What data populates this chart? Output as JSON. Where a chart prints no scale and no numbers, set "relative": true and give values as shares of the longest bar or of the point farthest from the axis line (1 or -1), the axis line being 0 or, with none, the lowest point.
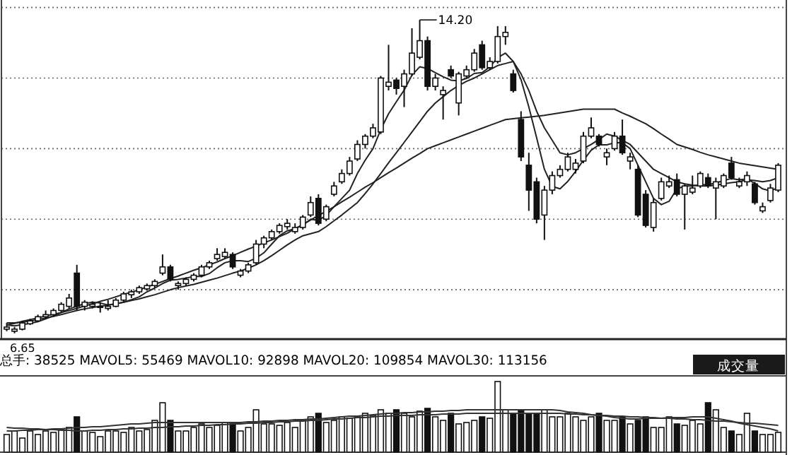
{
  "chart_data": [
    {
      "type": "candlestick",
      "grid": "y",
      "ylim": [
        6.51,
        14.68
      ],
      "yticks": [
        {
          "value": 14.5,
          "label": null
        },
        {
          "value": 12.8,
          "label": null
        },
        {
          "value": 11.1,
          "label": null
        },
        {
          "value": 9.4,
          "label": null
        },
        {
          "value": 7.7,
          "label": null
        }
      ],
      "categories": [
        null,
        null,
        null,
        null,
        null,
        null,
        null,
        null,
        null,
        null,
        null,
        null,
        null,
        null,
        null,
        null,
        null,
        null,
        null,
        null,
        null,
        null,
        null,
        null,
        null,
        null,
        null,
        null,
        null,
        null,
        null,
        null,
        null,
        null,
        null,
        null,
        null,
        null,
        null,
        null,
        null,
        null,
        null,
        null,
        null,
        null,
        null,
        null,
        null,
        null,
        null,
        null,
        null,
        null,
        null,
        null,
        null,
        null,
        null,
        null,
        null,
        null,
        null,
        null,
        null,
        null,
        null,
        null,
        null,
        null,
        null,
        null,
        null,
        null,
        null,
        null,
        null,
        null,
        null,
        null,
        null,
        null,
        null,
        null,
        null,
        null,
        null,
        null,
        null,
        null,
        null,
        null,
        null,
        null,
        null,
        null,
        null,
        null,
        null,
        null
      ],
      "ohlc": [
        [
          6.75,
          6.9,
          6.7,
          6.8
        ],
        [
          6.7,
          6.8,
          6.65,
          6.75
        ],
        [
          6.75,
          6.95,
          6.72,
          6.9
        ],
        [
          6.88,
          7.0,
          6.85,
          6.95
        ],
        [
          6.95,
          7.1,
          6.92,
          7.05
        ],
        [
          7.05,
          7.2,
          7.0,
          7.1
        ],
        [
          7.1,
          7.25,
          7.05,
          7.2
        ],
        [
          7.2,
          7.4,
          7.15,
          7.35
        ],
        [
          7.3,
          7.6,
          7.25,
          7.5
        ],
        [
          8.1,
          8.3,
          7.2,
          7.3
        ],
        [
          7.3,
          7.45,
          7.2,
          7.4
        ],
        [
          7.3,
          7.42,
          7.25,
          7.35
        ],
        [
          7.28,
          7.4,
          7.15,
          7.3
        ],
        [
          7.25,
          7.45,
          7.2,
          7.3
        ],
        [
          7.3,
          7.5,
          7.28,
          7.45
        ],
        [
          7.45,
          7.65,
          7.4,
          7.6
        ],
        [
          7.58,
          7.7,
          7.5,
          7.65
        ],
        [
          7.65,
          7.8,
          7.6,
          7.75
        ],
        [
          7.72,
          7.85,
          7.68,
          7.8
        ],
        [
          7.8,
          7.95,
          7.75,
          7.9
        ],
        [
          8.1,
          8.55,
          8.05,
          8.25
        ],
        [
          8.25,
          8.3,
          7.9,
          7.95
        ],
        [
          7.8,
          7.9,
          7.7,
          7.85
        ],
        [
          7.85,
          8.0,
          7.8,
          7.95
        ],
        [
          7.95,
          8.1,
          7.9,
          8.05
        ],
        [
          8.05,
          8.3,
          8.0,
          8.25
        ],
        [
          8.25,
          8.4,
          8.2,
          8.35
        ],
        [
          8.45,
          8.7,
          8.4,
          8.55
        ],
        [
          8.5,
          8.7,
          8.45,
          8.6
        ],
        [
          8.55,
          8.6,
          8.2,
          8.25
        ],
        [
          8.05,
          8.2,
          8.0,
          8.15
        ],
        [
          8.15,
          8.35,
          8.1,
          8.3
        ],
        [
          8.35,
          8.9,
          8.3,
          8.8
        ],
        [
          8.8,
          9.0,
          8.7,
          8.95
        ],
        [
          8.95,
          9.15,
          8.9,
          9.1
        ],
        [
          9.1,
          9.3,
          9.05,
          9.25
        ],
        [
          9.22,
          9.4,
          9.15,
          9.3
        ],
        [
          9.1,
          9.3,
          9.05,
          9.2
        ],
        [
          9.2,
          9.5,
          9.15,
          9.45
        ],
        [
          9.5,
          9.95,
          9.45,
          9.8
        ],
        [
          9.9,
          10.0,
          9.25,
          9.3
        ],
        [
          9.4,
          9.75,
          9.35,
          9.7
        ],
        [
          10.0,
          10.3,
          9.95,
          10.2
        ],
        [
          10.3,
          10.6,
          10.25,
          10.5
        ],
        [
          10.5,
          10.9,
          10.45,
          10.8
        ],
        [
          10.85,
          11.3,
          10.8,
          11.2
        ],
        [
          11.2,
          11.45,
          11.1,
          11.4
        ],
        [
          11.4,
          11.7,
          11.35,
          11.6
        ],
        [
          11.5,
          12.85,
          11.45,
          12.8
        ],
        [
          12.6,
          13.6,
          12.5,
          12.7
        ],
        [
          12.75,
          12.8,
          12.4,
          12.55
        ],
        [
          12.6,
          13.0,
          12.1,
          12.9
        ],
        [
          12.9,
          14.0,
          12.85,
          13.4
        ],
        [
          13.3,
          14.2,
          13.25,
          13.7
        ],
        [
          13.7,
          13.8,
          12.5,
          12.6
        ],
        [
          12.6,
          12.9,
          12.5,
          12.8
        ],
        [
          12.4,
          12.6,
          11.8,
          12.5
        ],
        [
          13.0,
          13.1,
          12.8,
          12.85
        ],
        [
          12.2,
          12.95,
          11.9,
          12.9
        ],
        [
          12.85,
          13.1,
          12.8,
          13.0
        ],
        [
          13.0,
          13.5,
          12.95,
          13.4
        ],
        [
          13.6,
          13.7,
          13.0,
          13.05
        ],
        [
          13.05,
          13.3,
          13.0,
          13.2
        ],
        [
          13.2,
          14.05,
          13.15,
          13.8
        ],
        [
          13.8,
          14.05,
          13.6,
          13.9
        ],
        [
          12.9,
          13.0,
          12.45,
          12.5
        ],
        [
          11.8,
          12.0,
          10.8,
          10.9
        ],
        [
          10.7,
          11.0,
          9.6,
          10.1
        ],
        [
          10.3,
          10.4,
          9.3,
          9.4
        ],
        [
          9.5,
          10.2,
          8.9,
          10.1
        ],
        [
          10.1,
          10.55,
          10.0,
          10.45
        ],
        [
          10.45,
          10.7,
          10.4,
          10.6
        ],
        [
          10.6,
          11.0,
          10.55,
          10.9
        ],
        [
          10.6,
          10.85,
          10.5,
          10.75
        ],
        [
          10.8,
          11.5,
          10.75,
          11.4
        ],
        [
          11.4,
          11.85,
          11.35,
          11.6
        ],
        [
          11.4,
          11.45,
          11.15,
          11.2
        ],
        [
          10.9,
          11.1,
          10.7,
          11.0
        ],
        [
          11.1,
          11.5,
          11.05,
          11.4
        ],
        [
          11.4,
          11.8,
          10.95,
          11.0
        ],
        [
          10.8,
          11.0,
          10.6,
          10.9
        ],
        [
          10.6,
          10.7,
          9.45,
          9.5
        ],
        [
          10.0,
          10.1,
          9.2,
          9.25
        ],
        [
          9.2,
          9.9,
          9.1,
          9.8
        ],
        [
          9.9,
          10.4,
          9.85,
          10.3
        ],
        [
          10.2,
          10.45,
          10.15,
          10.3
        ],
        [
          10.35,
          10.5,
          9.95,
          10.0
        ],
        [
          10.0,
          10.25,
          9.15,
          10.2
        ],
        [
          10.05,
          10.45,
          10.0,
          10.15
        ],
        [
          10.2,
          10.55,
          10.15,
          10.5
        ],
        [
          10.4,
          10.5,
          10.15,
          10.2
        ],
        [
          10.15,
          10.4,
          9.4,
          10.3
        ],
        [
          10.2,
          10.5,
          10.15,
          10.45
        ],
        [
          10.75,
          10.9,
          10.35,
          10.4
        ],
        [
          10.2,
          10.4,
          10.15,
          10.3
        ],
        [
          10.3,
          10.55,
          10.2,
          10.45
        ],
        [
          10.25,
          10.3,
          9.75,
          9.8
        ],
        [
          9.6,
          9.8,
          9.55,
          9.7
        ],
        [
          9.85,
          10.25,
          9.8,
          10.15
        ],
        [
          10.1,
          10.75,
          10.05,
          10.7
        ]
      ],
      "series": [
        {
          "type": "line",
          "color": "#222222",
          "values": [
            6.85,
            6.83,
            6.86,
            6.89,
            6.93,
            7.0,
            7.07,
            7.15,
            7.24,
            7.3,
            7.37,
            7.4,
            7.38,
            7.33,
            7.36,
            7.4,
            7.46,
            7.53,
            7.65,
            7.74,
            7.85,
            7.93,
            7.95,
            7.98,
            8.02,
            8.02,
            8.09,
            8.23,
            8.35,
            8.4,
            8.4,
            8.38,
            8.46,
            8.59,
            8.8,
            9.0,
            9.12,
            9.17,
            9.26,
            9.4,
            9.37,
            9.49,
            9.7,
            9.9,
            10.1,
            10.5,
            10.82,
            11.1,
            11.56,
            11.94,
            12.23,
            12.51,
            12.87,
            13.07,
            13.03,
            12.93,
            12.83,
            12.75,
            12.73,
            12.79,
            12.91,
            12.93,
            13.07,
            13.29,
            13.4,
            13.2,
            12.76,
            12.1,
            11.36,
            10.6,
            10.19,
            10.13,
            10.31,
            10.55,
            10.82,
            11.06,
            11.19,
            11.19,
            11.24,
            11.24,
            11.1,
            10.7,
            10.3,
            9.9,
            9.75,
            9.83,
            10.13,
            10.2,
            10.2,
            10.23,
            10.23,
            10.27,
            10.33,
            10.38,
            10.35,
            10.37,
            10.26,
            10.13,
            10.08,
            10.16
          ]
        },
        {
          "type": "line",
          "color": "#222222",
          "values": [
            6.9,
            6.9,
            6.92,
            6.95,
            6.98,
            7.02,
            7.06,
            7.1,
            7.15,
            7.2,
            7.24,
            7.27,
            7.3,
            7.33,
            7.36,
            7.4,
            7.44,
            7.48,
            7.53,
            7.58,
            7.64,
            7.7,
            7.75,
            7.79,
            7.83,
            7.88,
            7.93,
            7.98,
            8.04,
            8.1,
            8.15,
            8.22,
            8.3,
            8.4,
            8.52,
            8.65,
            8.78,
            8.9,
            9.0,
            9.05,
            9.1,
            9.22,
            9.36,
            9.5,
            9.65,
            9.8,
            10.02,
            10.25,
            10.5,
            10.76,
            11.0,
            11.25,
            11.5,
            11.75,
            12.0,
            12.2,
            12.35,
            12.5,
            12.62,
            12.72,
            12.8,
            12.9,
            13.0,
            13.1,
            13.15,
            13.2,
            12.9,
            12.5,
            12.0,
            11.6,
            11.3,
            11.0,
            10.95,
            11.0,
            11.1,
            11.2,
            11.32,
            11.45,
            11.4,
            11.3,
            11.2,
            11.0,
            10.8,
            10.6,
            10.5,
            10.4,
            10.3,
            10.25,
            10.22,
            10.2,
            10.2,
            10.22,
            10.25,
            10.28,
            10.3,
            10.35,
            10.33,
            10.3,
            10.33,
            10.4
          ]
        },
        {
          "type": "line",
          "color": "#222222",
          "values": [
            6.85,
            6.89,
            6.94,
            6.98,
            7.02,
            7.07,
            7.11,
            7.15,
            7.2,
            7.25,
            7.31,
            7.36,
            7.42,
            7.47,
            7.53,
            7.59,
            7.64,
            7.7,
            7.77,
            7.83,
            7.9,
            7.97,
            8.03,
            8.1,
            8.17,
            8.23,
            8.3,
            8.37,
            8.45,
            8.52,
            8.6,
            8.68,
            8.75,
            8.83,
            8.9,
            8.98,
            9.06,
            9.17,
            9.27,
            9.38,
            9.49,
            9.59,
            9.7,
            9.82,
            9.93,
            10.05,
            10.17,
            10.28,
            10.4,
            10.52,
            10.63,
            10.75,
            10.87,
            10.98,
            11.1,
            11.17,
            11.24,
            11.31,
            11.38,
            11.45,
            11.52,
            11.59,
            11.66,
            11.73,
            11.8,
            11.82,
            11.84,
            11.86,
            11.88,
            11.9,
            11.93,
            11.96,
            11.99,
            12.02,
            12.05,
            12.05,
            12.05,
            12.05,
            12.05,
            11.96,
            11.88,
            11.79,
            11.7,
            11.58,
            11.45,
            11.33,
            11.2,
            11.14,
            11.08,
            11.01,
            10.95,
            10.9,
            10.85,
            10.8,
            10.75,
            10.72,
            10.69,
            10.66,
            10.63,
            10.6
          ]
        }
      ],
      "annotations": [
        "14.20",
        "6.65"
      ]
    },
    {
      "type": "bar",
      "relative": true,
      "title": "总手: 38525 MAVOL5: 55469 MAVOL10: 92898 MAVOL20: 109854 MAVOL30: 113156",
      "annotations": [
        "成交量"
      ],
      "categories": [
        null,
        null,
        null,
        null,
        null,
        null,
        null,
        null,
        null,
        null,
        null,
        null,
        null,
        null,
        null,
        null,
        null,
        null,
        null,
        null,
        null,
        null,
        null,
        null,
        null,
        null,
        null,
        null,
        null,
        null,
        null,
        null,
        null,
        null,
        null,
        null,
        null,
        null,
        null,
        null,
        null,
        null,
        null,
        null,
        null,
        null,
        null,
        null,
        null,
        null,
        null,
        null,
        null,
        null,
        null,
        null,
        null,
        null,
        null,
        null,
        null,
        null,
        null,
        null,
        null,
        null,
        null,
        null,
        null,
        null,
        null,
        null,
        null,
        null,
        null,
        null,
        null,
        null,
        null,
        null,
        null,
        null,
        null,
        null,
        null,
        null,
        null,
        null,
        null,
        null,
        null,
        null,
        null,
        null,
        null,
        null,
        null,
        null,
        null,
        null
      ],
      "values": [
        0.25,
        0.3,
        0.2,
        0.3,
        0.25,
        0.3,
        0.28,
        0.32,
        0.35,
        0.5,
        0.3,
        0.28,
        0.22,
        0.3,
        0.3,
        0.28,
        0.35,
        0.3,
        0.32,
        0.45,
        0.7,
        0.45,
        0.3,
        0.3,
        0.35,
        0.4,
        0.35,
        0.38,
        0.42,
        0.4,
        0.3,
        0.35,
        0.6,
        0.4,
        0.4,
        0.38,
        0.42,
        0.35,
        0.45,
        0.5,
        0.55,
        0.42,
        0.45,
        0.5,
        0.48,
        0.5,
        0.55,
        0.52,
        0.6,
        0.55,
        0.6,
        0.55,
        0.5,
        0.58,
        0.62,
        0.5,
        0.45,
        0.55,
        0.4,
        0.42,
        0.45,
        0.5,
        0.48,
        1.0,
        0.6,
        0.55,
        0.6,
        0.55,
        0.55,
        0.6,
        0.5,
        0.5,
        0.55,
        0.5,
        0.45,
        0.5,
        0.55,
        0.45,
        0.45,
        0.5,
        0.4,
        0.45,
        0.5,
        0.35,
        0.35,
        0.5,
        0.4,
        0.38,
        0.45,
        0.4,
        0.7,
        0.6,
        0.35,
        0.3,
        0.25,
        0.55,
        0.3,
        0.25,
        0.25,
        0.28
      ],
      "colors": [
        "#ffffff",
        "#ffffff",
        "#ffffff",
        "#ffffff",
        "#ffffff",
        "#ffffff",
        "#ffffff",
        "#ffffff",
        "#ffffff",
        "#111111",
        "#ffffff",
        "#ffffff",
        "#ffffff",
        "#ffffff",
        "#ffffff",
        "#ffffff",
        "#ffffff",
        "#ffffff",
        "#ffffff",
        "#ffffff",
        "#ffffff",
        "#111111",
        "#ffffff",
        "#ffffff",
        "#ffffff",
        "#ffffff",
        "#ffffff",
        "#ffffff",
        "#ffffff",
        "#111111",
        "#ffffff",
        "#ffffff",
        "#ffffff",
        "#ffffff",
        "#ffffff",
        "#ffffff",
        "#ffffff",
        "#ffffff",
        "#ffffff",
        "#ffffff",
        "#111111",
        "#ffffff",
        "#ffffff",
        "#ffffff",
        "#ffffff",
        "#ffffff",
        "#ffffff",
        "#ffffff",
        "#ffffff",
        "#ffffff",
        "#111111",
        "#ffffff",
        "#ffffff",
        "#ffffff",
        "#111111",
        "#ffffff",
        "#ffffff",
        "#111111",
        "#ffffff",
        "#ffffff",
        "#ffffff",
        "#111111",
        "#ffffff",
        "#ffffff",
        "#ffffff",
        "#111111",
        "#111111",
        "#111111",
        "#111111",
        "#ffffff",
        "#ffffff",
        "#ffffff",
        "#ffffff",
        "#ffffff",
        "#ffffff",
        "#ffffff",
        "#111111",
        "#ffffff",
        "#ffffff",
        "#111111",
        "#ffffff",
        "#111111",
        "#111111",
        "#ffffff",
        "#ffffff",
        "#ffffff",
        "#111111",
        "#ffffff",
        "#ffffff",
        "#ffffff",
        "#111111",
        "#ffffff",
        "#ffffff",
        "#111111",
        "#ffffff",
        "#ffffff",
        "#111111",
        "#ffffff",
        "#ffffff",
        "#ffffff"
      ],
      "series": [
        {
          "type": "line",
          "color": "#333333",
          "values": [
            0.3,
            0.3,
            0.31,
            0.31,
            0.32,
            0.32,
            0.33,
            0.33,
            0.34,
            0.35,
            0.35,
            0.36,
            0.36,
            0.37,
            0.38,
            0.39,
            0.4,
            0.4,
            0.41,
            0.42,
            0.42,
            0.42,
            0.42,
            0.42,
            0.42,
            0.42,
            0.42,
            0.42,
            0.42,
            0.42,
            0.42,
            0.43,
            0.43,
            0.44,
            0.44,
            0.45,
            0.45,
            0.46,
            0.46,
            0.47,
            0.47,
            0.48,
            0.49,
            0.5,
            0.51,
            0.51,
            0.52,
            0.53,
            0.54,
            0.55,
            0.55,
            0.56,
            0.56,
            0.57,
            0.57,
            0.58,
            0.58,
            0.59,
            0.59,
            0.6,
            0.6,
            0.6,
            0.6,
            0.6,
            0.6,
            0.6,
            0.6,
            0.6,
            0.6,
            0.6,
            0.6,
            0.59,
            0.57,
            0.56,
            0.55,
            0.53,
            0.52,
            0.51,
            0.49,
            0.48,
            0.47,
            0.47,
            0.48,
            0.48,
            0.48,
            0.49,
            0.49,
            0.49,
            0.5,
            0.5,
            0.5,
            0.48,
            0.46,
            0.44,
            0.41,
            0.39,
            0.37,
            0.35,
            0.33,
            0.3
          ]
        },
        {
          "type": "line",
          "color": "#333333",
          "values": [
            0.35,
            0.34,
            0.34,
            0.33,
            0.33,
            0.32,
            0.32,
            0.31,
            0.31,
            0.3,
            0.3,
            0.31,
            0.31,
            0.32,
            0.32,
            0.33,
            0.33,
            0.34,
            0.34,
            0.35,
            0.35,
            0.36,
            0.36,
            0.37,
            0.37,
            0.38,
            0.38,
            0.39,
            0.39,
            0.4,
            0.4,
            0.41,
            0.41,
            0.42,
            0.42,
            0.43,
            0.43,
            0.44,
            0.44,
            0.45,
            0.45,
            0.46,
            0.47,
            0.47,
            0.48,
            0.49,
            0.49,
            0.5,
            0.51,
            0.51,
            0.52,
            0.52,
            0.52,
            0.53,
            0.53,
            0.53,
            0.54,
            0.54,
            0.54,
            0.55,
            0.55,
            0.55,
            0.55,
            0.55,
            0.55,
            0.55,
            0.55,
            0.55,
            0.55,
            0.55,
            0.55,
            0.55,
            0.54,
            0.54,
            0.53,
            0.53,
            0.52,
            0.52,
            0.51,
            0.51,
            0.5,
            0.5,
            0.49,
            0.49,
            0.48,
            0.48,
            0.47,
            0.47,
            0.46,
            0.46,
            0.45,
            0.44,
            0.44,
            0.43,
            0.42,
            0.41,
            0.41,
            0.4,
            0.39,
            0.38
          ]
        }
      ]
    }
  ]
}
